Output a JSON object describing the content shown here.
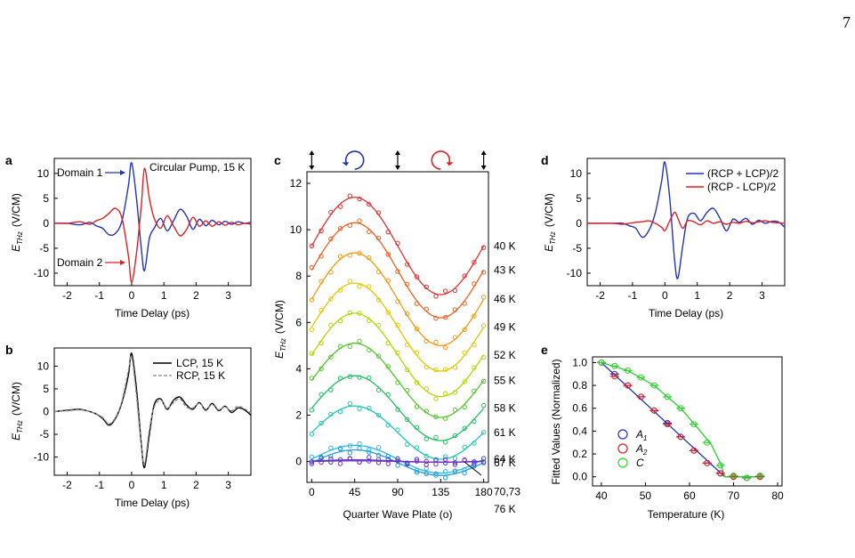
{
  "page_number": "7",
  "chart_data": [
    {
      "panel": "a",
      "type": "line",
      "xlabel": "Time Delay (ps)",
      "ylabel_main": "E",
      "ylabel_sub": "THz",
      "ylabel_unit": "(V/CM)",
      "xlim": [
        -2.4,
        3.7
      ],
      "ylim": [
        -12.5,
        13
      ],
      "xticks": [
        -2,
        -1,
        0,
        1,
        2,
        3
      ],
      "yticks": [
        -10,
        -5,
        0,
        5,
        10
      ],
      "annotations": [
        "Domain 1",
        "Domain 2",
        "Circular Pump, 15 K"
      ],
      "colors": {
        "domain1": "#2233bb",
        "domain2": "#e02020"
      },
      "series": [
        {
          "color": "#2233bb",
          "x": [
            -2.4,
            -2.0,
            -1.6,
            -1.3,
            -1.1,
            -0.9,
            -0.7,
            -0.5,
            -0.3,
            -0.1,
            0.0,
            0.15,
            0.3,
            0.4,
            0.55,
            0.7,
            0.9,
            1.1,
            1.3,
            1.5,
            1.7,
            1.9,
            2.1,
            2.3,
            2.5,
            2.7,
            2.9,
            3.1,
            3.3,
            3.5,
            3.7
          ],
          "values": [
            0,
            0,
            -0.3,
            0.2,
            -0.5,
            -1.0,
            -2.3,
            -2.0,
            0.5,
            7.5,
            12.1,
            5.0,
            -5.0,
            -9.5,
            -3.0,
            -1.0,
            1.0,
            -1.5,
            0.5,
            2.8,
            1.5,
            -1.2,
            0.8,
            -0.5,
            0.6,
            -0.3,
            0.4,
            -0.2,
            0.3,
            0,
            0.2
          ]
        },
        {
          "color": "#e02020",
          "x": [
            -2.4,
            -2.0,
            -1.6,
            -1.3,
            -1.1,
            -0.9,
            -0.7,
            -0.5,
            -0.3,
            -0.1,
            0.0,
            0.15,
            0.3,
            0.4,
            0.55,
            0.7,
            0.9,
            1.1,
            1.3,
            1.5,
            1.7,
            1.9,
            2.1,
            2.3,
            2.5,
            2.7,
            2.9,
            3.1,
            3.3,
            3.5,
            3.7
          ],
          "values": [
            0,
            0,
            0.3,
            -0.2,
            0.5,
            1.0,
            2.0,
            3.0,
            1.0,
            -6.5,
            -11.8,
            -6.0,
            3.5,
            11.0,
            5.0,
            1.0,
            -1.0,
            1.5,
            -0.5,
            -2.5,
            -1.3,
            1.2,
            -0.6,
            0.5,
            -0.6,
            0.3,
            -0.4,
            0.2,
            -0.3,
            0,
            -0.2
          ]
        }
      ]
    },
    {
      "panel": "b",
      "type": "line",
      "xlabel": "Time Delay (ps)",
      "ylabel_main": "E",
      "ylabel_sub": "THz",
      "ylabel_unit": "(V/CM)",
      "xlim": [
        -2.4,
        3.7
      ],
      "ylim": [
        -14,
        14
      ],
      "xticks": [
        -2,
        -1,
        0,
        1,
        2,
        3
      ],
      "yticks": [
        -10,
        -5,
        0,
        5,
        10
      ],
      "series": [
        {
          "name": "LCP, 15 K",
          "color": "#000000",
          "dash": "solid",
          "x": [
            -2.4,
            -2.0,
            -1.6,
            -1.3,
            -1.1,
            -0.9,
            -0.7,
            -0.5,
            -0.3,
            -0.1,
            0.0,
            0.15,
            0.3,
            0.4,
            0.55,
            0.7,
            0.9,
            1.1,
            1.3,
            1.5,
            1.7,
            1.9,
            2.1,
            2.3,
            2.5,
            2.7,
            2.9,
            3.1,
            3.3,
            3.5,
            3.7
          ],
          "values": [
            0,
            0.3,
            0.5,
            0,
            -0.5,
            -1.5,
            -3.0,
            -1.5,
            2.0,
            8.0,
            12.8,
            5.0,
            -7.0,
            -12.3,
            -5.0,
            1.5,
            2.8,
            0.5,
            2.5,
            3.2,
            1.5,
            0.5,
            2.0,
            0.3,
            1.8,
            0.2,
            1.2,
            -0.2,
            0.8,
            0.4,
            -0.8
          ]
        },
        {
          "name": "RCP, 15 K",
          "color": "#888888",
          "dash": "dashed",
          "x": [
            -2.4,
            -2.0,
            -1.6,
            -1.3,
            -1.1,
            -0.9,
            -0.7,
            -0.5,
            -0.3,
            -0.1,
            0.0,
            0.15,
            0.3,
            0.4,
            0.55,
            0.7,
            0.9,
            1.1,
            1.3,
            1.5,
            1.7,
            1.9,
            2.1,
            2.3,
            2.5,
            2.7,
            2.9,
            3.1,
            3.3,
            3.5,
            3.7
          ],
          "values": [
            0,
            0.2,
            0.4,
            0,
            -0.5,
            -1.3,
            -2.7,
            -1.3,
            2.3,
            9.0,
            12.0,
            3.5,
            -7.5,
            -11.5,
            -4.0,
            1.0,
            2.5,
            0.8,
            2.0,
            2.8,
            1.0,
            0.8,
            1.8,
            0.5,
            1.5,
            0.4,
            1.0,
            0.2,
            1.2,
            0.6,
            -0.3
          ]
        }
      ]
    },
    {
      "panel": "c",
      "type": "line",
      "xlabel": "Quarter Wave Plate (o)",
      "ylabel_main": "E",
      "ylabel_sub": "THz",
      "ylabel_unit": "(V/CM)",
      "xlim": [
        -5,
        185
      ],
      "ylim": [
        -0.9,
        12.5
      ],
      "xticks": [
        0,
        45,
        90,
        135,
        180
      ],
      "yticks": [
        0,
        2,
        4,
        6,
        8,
        10,
        12
      ],
      "top_symbols": [
        "linear",
        "circular-left",
        "linear",
        "circular-right",
        "linear"
      ],
      "top_symbol_x": [
        0,
        45,
        90,
        135,
        180
      ],
      "curve_labels": [
        "40 K",
        "43 K",
        "46 K",
        "49 K",
        "52 K",
        "55 K",
        "58 K",
        "61 K",
        "64 K",
        "67 K",
        "70,73",
        "76 K"
      ],
      "series": [
        {
          "name": "40 K",
          "offset": 9.3,
          "amp": 2.1,
          "color": "#e53030"
        },
        {
          "name": "43 K",
          "offset": 8.25,
          "amp": 2.05,
          "color": "#f06020"
        },
        {
          "name": "46 K",
          "offset": 7.0,
          "amp": 2.0,
          "color": "#f49a10"
        },
        {
          "name": "49 K",
          "offset": 5.8,
          "amp": 1.9,
          "color": "#e8c400"
        },
        {
          "name": "52 K",
          "offset": 4.6,
          "amp": 1.8,
          "color": "#b8d400"
        },
        {
          "name": "55 K",
          "offset": 3.5,
          "amp": 1.6,
          "color": "#50c828"
        },
        {
          "name": "58 K",
          "offset": 2.3,
          "amp": 1.4,
          "color": "#20c060"
        },
        {
          "name": "61 K",
          "offset": 1.25,
          "amp": 1.15,
          "color": "#20c8b0"
        },
        {
          "name": "64 K",
          "offset": 0.1,
          "amp": 0.6,
          "color": "#30b8e8"
        },
        {
          "name": "67 K",
          "offset": -0.05,
          "amp": 0.55,
          "color": "#20a0e0"
        },
        {
          "name": "70,73",
          "offset": 0.02,
          "amp": 0.05,
          "color": "#4040d0"
        },
        {
          "name": "76 K",
          "offset": 0.0,
          "amp": 0.03,
          "color": "#8030c0"
        }
      ]
    },
    {
      "panel": "d",
      "type": "line",
      "xlabel": "Time Delay (ps)",
      "ylabel_main": "E",
      "ylabel_sub": "THz",
      "ylabel_unit": "(V/CM)",
      "xlim": [
        -2.4,
        3.7
      ],
      "ylim": [
        -12.5,
        13
      ],
      "xticks": [
        -2,
        -1,
        0,
        1,
        2,
        3
      ],
      "yticks": [
        -10,
        -5,
        0,
        5,
        10
      ],
      "series": [
        {
          "name": "(RCP + LCP)/2",
          "color": "#2233bb",
          "x": [
            -2.4,
            -2.0,
            -1.6,
            -1.3,
            -1.1,
            -0.9,
            -0.7,
            -0.5,
            -0.3,
            -0.1,
            0.0,
            0.15,
            0.3,
            0.4,
            0.55,
            0.7,
            0.9,
            1.1,
            1.3,
            1.5,
            1.7,
            1.9,
            2.1,
            2.3,
            2.5,
            2.7,
            2.9,
            3.1,
            3.3,
            3.5,
            3.7
          ],
          "values": [
            0,
            0,
            0,
            0,
            -0.5,
            -1.0,
            -2.8,
            -1.5,
            2.0,
            8.5,
            12.2,
            5.0,
            -7.5,
            -11.0,
            -4.5,
            1.0,
            2.0,
            0.5,
            2.2,
            3.0,
            1.0,
            -1.5,
            0.8,
            0.2,
            1.0,
            -0.2,
            0.6,
            0,
            0.4,
            0.3,
            -0.8
          ]
        },
        {
          "name": "(RCP - LCP)/2",
          "color": "#e02020",
          "x": [
            -2.4,
            -2.0,
            -1.6,
            -1.3,
            -1.1,
            -0.9,
            -0.7,
            -0.5,
            -0.3,
            -0.1,
            0.0,
            0.15,
            0.3,
            0.4,
            0.55,
            0.7,
            0.9,
            1.1,
            1.3,
            1.5,
            1.7,
            1.9,
            2.1,
            2.3,
            2.5,
            2.7,
            2.9,
            3.1,
            3.3,
            3.5,
            3.7
          ],
          "values": [
            0,
            0,
            0,
            -0.2,
            0,
            0.2,
            0.3,
            0.5,
            0,
            -0.8,
            -1.5,
            0.5,
            2.2,
            1.0,
            -1.0,
            0.5,
            0.3,
            -0.3,
            0.5,
            0,
            0.3,
            -0.2,
            0.2,
            0,
            0.4,
            0.1,
            0.3,
            0.5,
            0.2,
            0.1,
            0
          ]
        }
      ]
    },
    {
      "panel": "e",
      "type": "scatter",
      "xlabel": "Temperature (K)",
      "ylabel": "Fitted Values (Normalized)",
      "xlim": [
        38,
        81
      ],
      "ylim": [
        -0.08,
        1.05
      ],
      "xticks": [
        40,
        50,
        60,
        70,
        80
      ],
      "yticks": [
        0.0,
        0.2,
        0.4,
        0.6,
        0.8,
        1.0
      ],
      "legend": [
        {
          "main": "A",
          "sub": "1"
        },
        {
          "main": "A",
          "sub": "2"
        },
        {
          "main": "C",
          "sub": ""
        }
      ],
      "series": [
        {
          "name": "A1",
          "color": "#2233bb",
          "x": [
            40,
            43,
            46,
            49,
            52,
            55,
            58,
            61,
            64,
            67,
            70,
            73,
            76
          ],
          "values": [
            1.0,
            0.9,
            0.8,
            0.7,
            0.58,
            0.47,
            0.35,
            0.23,
            0.12,
            0.03,
            0.0,
            -0.01,
            0.0
          ]
        },
        {
          "name": "A2",
          "color": "#e02020",
          "x": [
            40,
            43,
            46,
            49,
            52,
            55,
            58,
            61,
            64,
            67,
            70,
            73,
            76
          ],
          "values": [
            1.0,
            0.88,
            0.8,
            0.7,
            0.58,
            0.46,
            0.35,
            0.23,
            0.12,
            0.03,
            0.0,
            -0.01,
            0.0
          ]
        },
        {
          "name": "C",
          "color": "#30d030",
          "x": [
            40,
            43,
            46,
            49,
            52,
            55,
            58,
            61,
            64,
            67,
            70,
            73,
            76
          ],
          "values": [
            1.0,
            0.97,
            0.93,
            0.87,
            0.8,
            0.7,
            0.6,
            0.46,
            0.3,
            0.1,
            0.01,
            -0.01,
            0.01
          ]
        }
      ],
      "fit_lines": [
        {
          "color": "#2233bb",
          "x": [
            40,
            68,
            68,
            76
          ],
          "values": [
            1.0,
            0.0,
            0.0,
            0.0
          ]
        },
        {
          "color": "#30d030",
          "x": [
            40,
            46,
            52,
            58,
            62,
            65,
            67,
            68,
            68.5,
            76
          ],
          "values": [
            1.0,
            0.93,
            0.8,
            0.6,
            0.42,
            0.28,
            0.12,
            0.0,
            0.0,
            0.0
          ]
        }
      ]
    }
  ]
}
